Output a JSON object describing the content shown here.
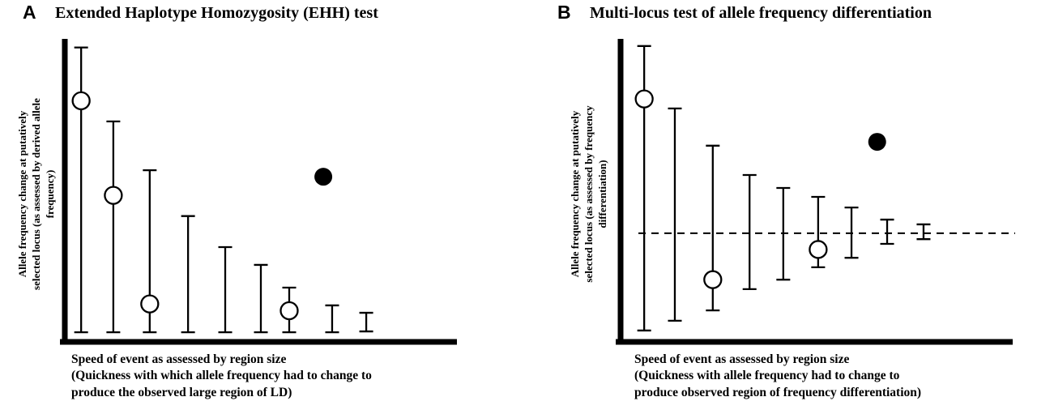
{
  "figure": {
    "background": "#ffffff",
    "ink": "#000000"
  },
  "panels": [
    {
      "letter": "A",
      "title": "Extended Haplotype Homozygosity (EHH) test",
      "y_axis_label": "Allele frequency change at putatively\nselected locus (as assessed by derived allele\nfrequency)",
      "x_axis_label": "Speed of event as assessed by region size\n(Quickness with which allele frequency had to change to\nproduce the observed large region of LD)"
    },
    {
      "letter": "B",
      "title": "Multi-locus test of allele frequency differentiation",
      "y_axis_label": "Allele frequency change at putatively\nselected locus  (as assessed by frequency\ndifferentiation)",
      "x_axis_label": "Speed of event as assessed by region size\n(Quickness with allele frequency had to change to\nproduce observed region of frequency differentiation)"
    }
  ],
  "chart_data": [
    {
      "type": "scatter",
      "subtype": "schematic-error-bars",
      "panel": "A",
      "title": "Extended Haplotype Homozygosity (EHH) test",
      "xlabel": "Speed of event as assessed by region size (Quickness with which allele frequency had to change to produce the observed large region of LD)",
      "ylabel": "Allele frequency change at putatively selected locus (as assessed by derived allele frequency)",
      "axes_numeric": false,
      "xlim": [
        0,
        1
      ],
      "ylim": [
        0,
        1
      ],
      "grid": false,
      "error_bars": [
        {
          "x": 0.013,
          "low": 0.027,
          "high": 0.99,
          "open_circle": 0.81
        },
        {
          "x": 0.097,
          "low": 0.027,
          "high": 0.74,
          "open_circle": 0.49
        },
        {
          "x": 0.192,
          "low": 0.027,
          "high": 0.575,
          "open_circle": 0.123
        },
        {
          "x": 0.292,
          "low": 0.027,
          "high": 0.42,
          "open_circle": null
        },
        {
          "x": 0.389,
          "low": 0.027,
          "high": 0.315,
          "open_circle": null
        },
        {
          "x": 0.482,
          "low": 0.027,
          "high": 0.255,
          "open_circle": null
        },
        {
          "x": 0.556,
          "low": 0.027,
          "high": 0.178,
          "open_circle": 0.1
        },
        {
          "x": 0.668,
          "low": 0.027,
          "high": 0.118,
          "open_circle": null
        },
        {
          "x": 0.757,
          "low": 0.03,
          "high": 0.093,
          "open_circle": null
        }
      ],
      "filled_point": {
        "x": 0.645,
        "y": 0.553
      },
      "dashed_baseline": null
    },
    {
      "type": "scatter",
      "subtype": "schematic-error-bars",
      "panel": "B",
      "title": "Multi-locus test of allele frequency differentiation",
      "xlabel": "Speed of event as assessed by region size (Quickness with allele frequency had to change to produce observed region of frequency differentiation)",
      "ylabel": "Allele frequency change at putatively selected locus (as assessed by frequency differentiation)",
      "axes_numeric": false,
      "xlim": [
        0,
        1
      ],
      "ylim": [
        0,
        1
      ],
      "grid": false,
      "error_bars": [
        {
          "x": 0.032,
          "low": 0.033,
          "high": 0.995,
          "open_circle": 0.816
        },
        {
          "x": 0.112,
          "low": 0.066,
          "high": 0.784,
          "open_circle": null
        },
        {
          "x": 0.211,
          "low": 0.101,
          "high": 0.658,
          "open_circle": 0.205
        },
        {
          "x": 0.307,
          "low": 0.173,
          "high": 0.559,
          "open_circle": null
        },
        {
          "x": 0.395,
          "low": 0.205,
          "high": 0.515,
          "open_circle": null
        },
        {
          "x": 0.486,
          "low": 0.247,
          "high": 0.485,
          "open_circle": 0.307
        },
        {
          "x": 0.573,
          "low": 0.279,
          "high": 0.449,
          "open_circle": null
        },
        {
          "x": 0.666,
          "low": 0.326,
          "high": 0.408,
          "open_circle": null
        },
        {
          "x": 0.761,
          "low": 0.342,
          "high": 0.392,
          "open_circle": null
        }
      ],
      "filled_point": {
        "x": 0.64,
        "y": 0.671
      },
      "dashed_baseline": 0.362
    }
  ]
}
